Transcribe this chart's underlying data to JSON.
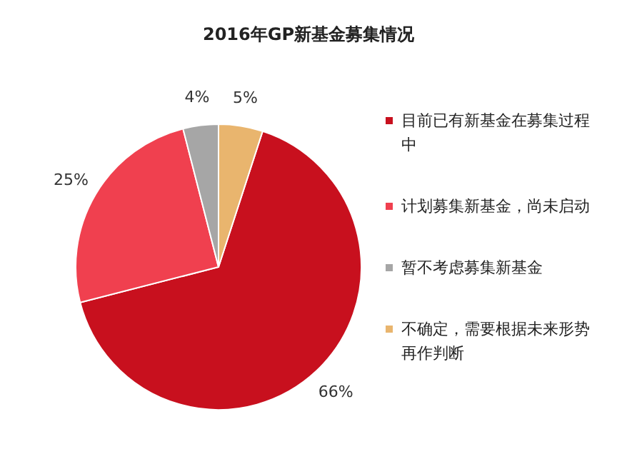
{
  "chart_data": {
    "type": "pie",
    "title": "2016年GP新基金募集情况",
    "categories": [
      "目前已有新基金在募集过程中",
      "计划募集新基金，尚未启动",
      "暂不考虑募集新基金",
      "不确定，需要根据未来形势再作判断"
    ],
    "values": [
      66,
      25,
      4,
      5
    ],
    "value_labels": [
      "66%",
      "25%",
      "4%",
      "5%"
    ],
    "colors": [
      "#c8101e",
      "#f0404f",
      "#a6a6a6",
      "#e9b56e"
    ],
    "legend": "right"
  }
}
